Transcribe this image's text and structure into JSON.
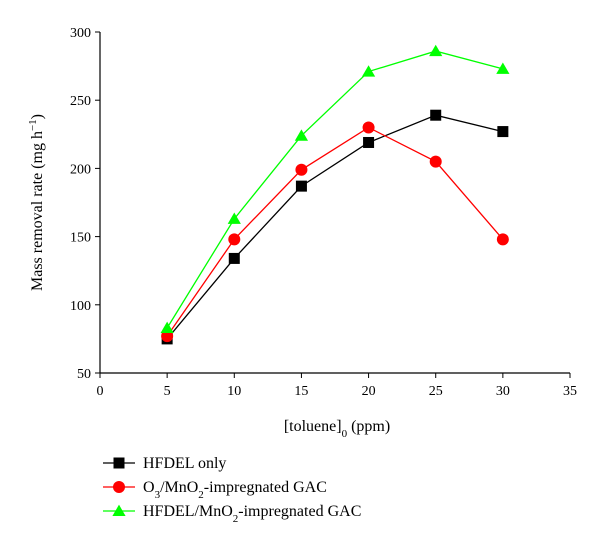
{
  "chart_data": {
    "type": "line",
    "title": "",
    "xlabel": {
      "main": "[toluene]",
      "sub": "0",
      "suffix": " (ppm)"
    },
    "ylabel": {
      "main": "Mass removal rate (mg h",
      "sup": "−1",
      "suffix": ")"
    },
    "xlim": [
      0,
      35
    ],
    "ylim": [
      50,
      300
    ],
    "xticks": [
      0,
      5,
      10,
      15,
      20,
      25,
      30,
      35
    ],
    "yticks": [
      50,
      100,
      150,
      200,
      250,
      300
    ],
    "grid": false,
    "legend_position": "bottom",
    "series": [
      {
        "name": "HFDEL only",
        "legend_parts": [
          {
            "t": "HFDEL only"
          }
        ],
        "color": "#000000",
        "marker": "square",
        "x": [
          5,
          10,
          15,
          20,
          25,
          30
        ],
        "y": [
          75,
          134,
          187,
          219,
          239,
          227
        ]
      },
      {
        "name": "O3/MnO2-impregnated GAC",
        "legend_parts": [
          {
            "t": "O"
          },
          {
            "t": "3",
            "sub": true
          },
          {
            "t": "/MnO"
          },
          {
            "t": "2",
            "sub": true
          },
          {
            "t": "-impregnated GAC"
          }
        ],
        "color": "#ff0000",
        "marker": "circle",
        "x": [
          5,
          10,
          15,
          20,
          25,
          30
        ],
        "y": [
          77,
          148,
          199,
          230,
          205,
          148
        ]
      },
      {
        "name": "HFDEL/MnO2-impregnated GAC",
        "legend_parts": [
          {
            "t": "HFDEL/MnO"
          },
          {
            "t": "2",
            "sub": true
          },
          {
            "t": "-impregnated GAC"
          }
        ],
        "color": "#00ff00",
        "marker": "triangle",
        "x": [
          5,
          10,
          15,
          20,
          25,
          30
        ],
        "y": [
          83,
          163,
          224,
          271,
          286,
          273
        ]
      }
    ]
  }
}
